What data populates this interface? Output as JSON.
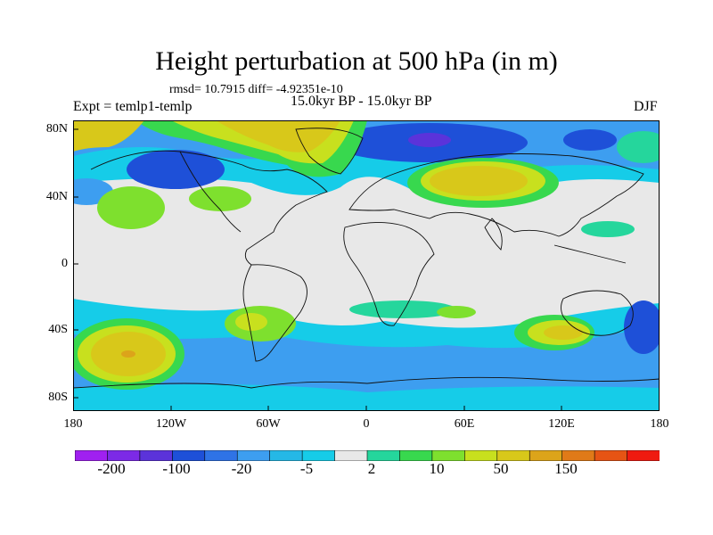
{
  "title": "Height perturbation at 500 hPa (in m)",
  "stats": "rmsd= 10.7915 diff= -4.92351e-10",
  "experiment": "Expt = temlp1-temlp",
  "period": "15.0kyr BP - 15.0kyr BP",
  "season": "DJF",
  "map": {
    "projection": "cylindrical equidistant",
    "lat_ticks": [
      "80N",
      "40N",
      "0",
      "40S",
      "80S"
    ],
    "lon_ticks": [
      "180",
      "120W",
      "60W",
      "0",
      "60E",
      "120E",
      "180"
    ]
  },
  "colorbar": {
    "labels": [
      "-200",
      "-100",
      "-20",
      "-5",
      "2",
      "10",
      "50",
      "150"
    ],
    "colors": [
      "#a020f0",
      "#7c2ae6",
      "#5b33da",
      "#1e50d8",
      "#2f73e6",
      "#3d9ef0",
      "#25b8e6",
      "#16cce8",
      "#e8e8e8",
      "#25d69c",
      "#38d84e",
      "#7ee02e",
      "#c8e01e",
      "#d8c81a",
      "#dca41a",
      "#e07a18",
      "#e65414",
      "#ef1a10"
    ]
  }
}
